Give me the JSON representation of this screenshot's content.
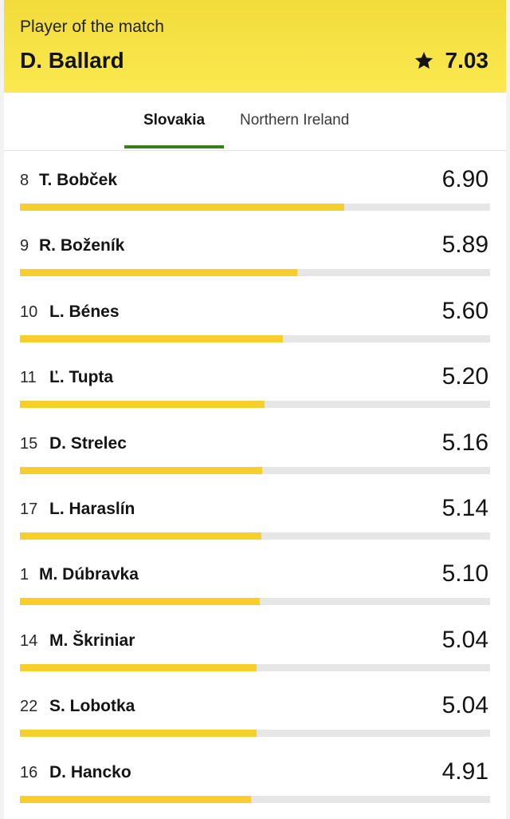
{
  "player_of_the_match": {
    "label": "Player of the match",
    "name": "D. Ballard",
    "rating": "7.03",
    "icon": "star-icon"
  },
  "tabs": [
    {
      "label": "Slovakia",
      "selected": true
    },
    {
      "label": "Northern Ireland",
      "selected": false
    }
  ],
  "colors": {
    "accent_bar": "#f7cf2a",
    "tab_underline": "#3a7d1f",
    "banner": "#fbe94f"
  },
  "rating_scale_max": 10,
  "players": [
    {
      "number": "8",
      "name": "T. Bobček",
      "rating": "6.90"
    },
    {
      "number": "9",
      "name": "R. Boženík",
      "rating": "5.89"
    },
    {
      "number": "10",
      "name": "L. Bénes",
      "rating": "5.60"
    },
    {
      "number": "11",
      "name": "Ľ. Tupta",
      "rating": "5.20"
    },
    {
      "number": "15",
      "name": "D. Strelec",
      "rating": "5.16"
    },
    {
      "number": "17",
      "name": "L. Haraslín",
      "rating": "5.14"
    },
    {
      "number": "1",
      "name": "M. Dúbravka",
      "rating": "5.10"
    },
    {
      "number": "14",
      "name": "M. Škriniar",
      "rating": "5.04"
    },
    {
      "number": "22",
      "name": "S. Lobotka",
      "rating": "5.04"
    },
    {
      "number": "16",
      "name": "D. Hancko",
      "rating": "4.91"
    }
  ]
}
